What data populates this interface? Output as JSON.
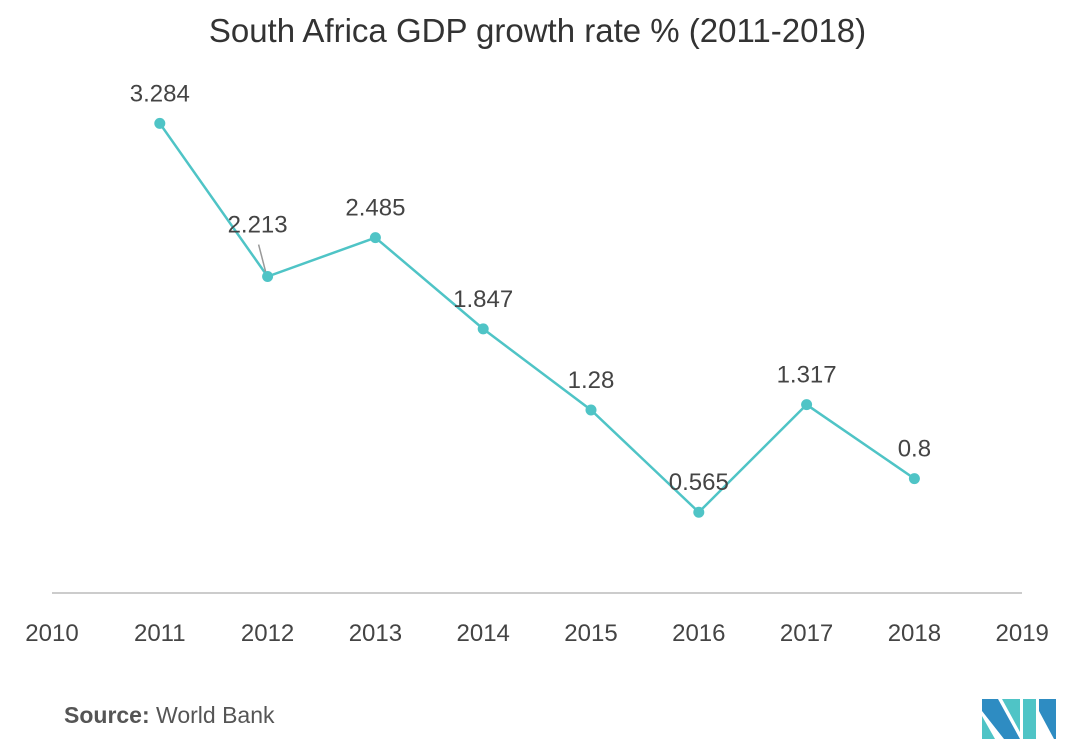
{
  "chart_data": {
    "type": "line",
    "title": "South Africa GDP growth rate % (2011-2018)",
    "xlabel": "",
    "ylabel": "",
    "x_ticks": [
      "2010",
      "2011",
      "2012",
      "2013",
      "2014",
      "2015",
      "2016",
      "2017",
      "2018",
      "2019"
    ],
    "x": [
      2011,
      2012,
      2013,
      2014,
      2015,
      2016,
      2017,
      2018
    ],
    "series": [
      {
        "name": "GDP growth rate %",
        "values": [
          3.284,
          2.213,
          2.485,
          1.847,
          1.28,
          0.565,
          1.317,
          0.8
        ],
        "labels": [
          "3.284",
          "2.213",
          "2.485",
          "1.847",
          "1.28",
          "0.565",
          "1.317",
          "0.8"
        ]
      }
    ],
    "xlim": [
      2010,
      2019
    ],
    "ylim": [
      0,
      3.5
    ],
    "grid": false,
    "legend": "none",
    "color": "#4fc4c6"
  },
  "source": {
    "label": "Source:",
    "value": "World Bank"
  },
  "logo": {
    "text": "MI"
  }
}
